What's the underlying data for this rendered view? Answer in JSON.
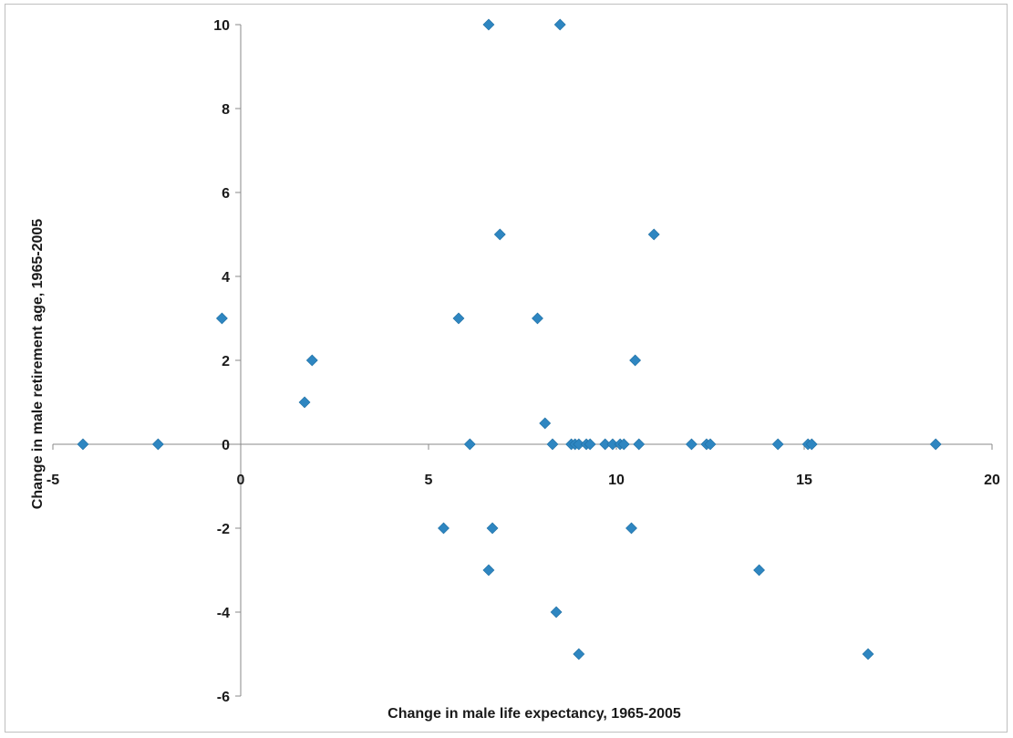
{
  "chart_data": {
    "type": "scatter",
    "title": "",
    "xlabel": "Change in male life expectancy, 1965-2005",
    "ylabel": "Change in male retirement age, 1965-2005",
    "xlim": [
      -5,
      20
    ],
    "ylim": [
      -6,
      10
    ],
    "x_ticks": [
      -5,
      0,
      5,
      10,
      15,
      20
    ],
    "y_ticks": [
      -6,
      -4,
      -2,
      0,
      2,
      4,
      6,
      8,
      10
    ],
    "x_tick_labels": [
      "-5",
      "0",
      "5",
      "10",
      "15",
      "20"
    ],
    "y_tick_labels": [
      "-6",
      "-4",
      "-2",
      "0",
      "2",
      "4",
      "6",
      "8",
      "10"
    ],
    "grid": false,
    "legend": "none",
    "marker": "diamond",
    "marker_color": "#2e86c1",
    "series": [
      {
        "points": [
          {
            "x": 6.6,
            "y": 10
          },
          {
            "x": 8.5,
            "y": 10
          },
          {
            "x": 6.9,
            "y": 5
          },
          {
            "x": 11.0,
            "y": 5
          },
          {
            "x": -0.5,
            "y": 3
          },
          {
            "x": 5.8,
            "y": 3
          },
          {
            "x": 7.9,
            "y": 3
          },
          {
            "x": 1.9,
            "y": 2
          },
          {
            "x": 10.5,
            "y": 2
          },
          {
            "x": 1.7,
            "y": 1
          },
          {
            "x": 8.1,
            "y": 0.5
          },
          {
            "x": -4.2,
            "y": 0
          },
          {
            "x": -2.2,
            "y": 0
          },
          {
            "x": 6.1,
            "y": 0
          },
          {
            "x": 8.3,
            "y": 0
          },
          {
            "x": 8.8,
            "y": 0
          },
          {
            "x": 8.9,
            "y": 0
          },
          {
            "x": 9.0,
            "y": 0
          },
          {
            "x": 9.2,
            "y": 0
          },
          {
            "x": 9.3,
            "y": 0
          },
          {
            "x": 9.7,
            "y": 0
          },
          {
            "x": 9.9,
            "y": 0
          },
          {
            "x": 10.1,
            "y": 0
          },
          {
            "x": 10.2,
            "y": 0
          },
          {
            "x": 10.6,
            "y": 0
          },
          {
            "x": 12.0,
            "y": 0
          },
          {
            "x": 12.4,
            "y": 0
          },
          {
            "x": 12.5,
            "y": 0
          },
          {
            "x": 14.3,
            "y": 0
          },
          {
            "x": 15.1,
            "y": 0
          },
          {
            "x": 15.2,
            "y": 0
          },
          {
            "x": 18.5,
            "y": 0
          },
          {
            "x": 5.4,
            "y": -2
          },
          {
            "x": 6.7,
            "y": -2
          },
          {
            "x": 10.4,
            "y": -2
          },
          {
            "x": 6.6,
            "y": -3
          },
          {
            "x": 13.8,
            "y": -3
          },
          {
            "x": 8.4,
            "y": -4
          },
          {
            "x": 9.0,
            "y": -5
          },
          {
            "x": 16.7,
            "y": -5
          }
        ]
      }
    ]
  }
}
